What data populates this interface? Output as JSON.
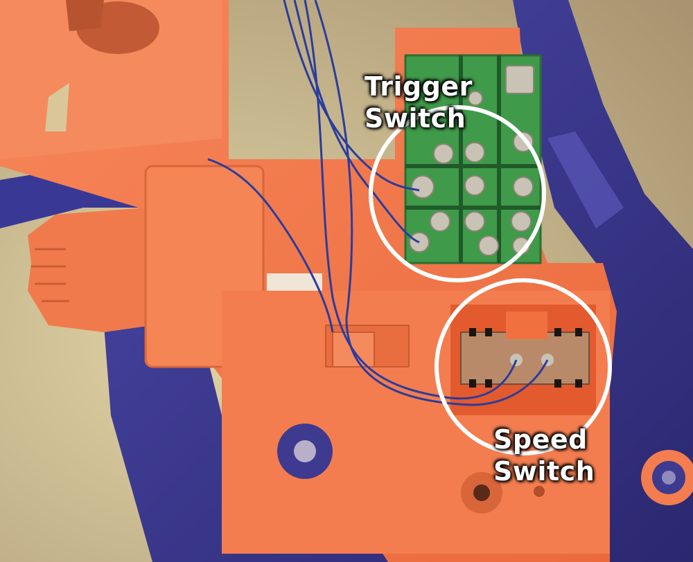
{
  "annotations": {
    "trigger_switch": {
      "line1": "Trigger",
      "line2": "Switch"
    },
    "speed_switch": {
      "line1": "Speed",
      "line2": "Switch"
    }
  },
  "colors": {
    "background_fabric": "#c9b98f",
    "housing_orange": "#f2784a",
    "housing_purple": "#3d3a8f",
    "pcb_green": "#3f9a4a",
    "solder": "#c9c3b6",
    "wire_blue": "#2a3c9e",
    "highlight_ring": "#ffffff",
    "label_text": "#ffffff"
  },
  "icons": [
    "trigger-switch-pcb",
    "speed-switch-slide",
    "screw-post"
  ]
}
